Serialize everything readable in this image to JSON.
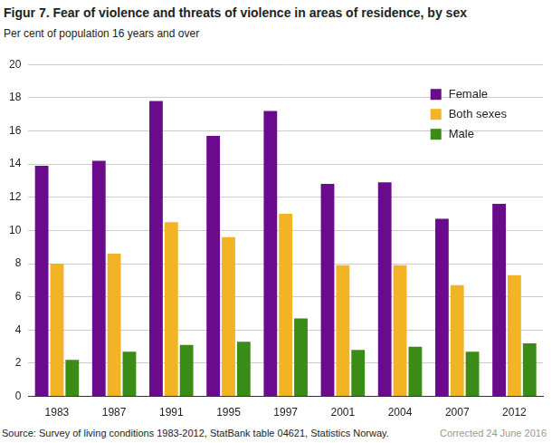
{
  "chart_data": {
    "type": "bar",
    "title": "Figur 7. Fear of violence and threats of violence in areas of residence, by sex",
    "subtitle": "Per cent of population 16 years and over",
    "source": "Source: Survey of living conditions 1983-2012, StatBank table 04621, Statistics Norway.",
    "note": "Corrected 24 June 2016",
    "categories": [
      "1983",
      "1987",
      "1991",
      "1995",
      "1997",
      "2001",
      "2004",
      "2007",
      "2012"
    ],
    "series": [
      {
        "name": "Female",
        "color": "#6a0a8c",
        "values": [
          13.9,
          14.2,
          17.8,
          15.7,
          17.2,
          12.8,
          12.9,
          10.7,
          11.6
        ]
      },
      {
        "name": "Both sexes",
        "color": "#f2b324",
        "values": [
          8.0,
          8.6,
          10.5,
          9.6,
          11.0,
          7.9,
          7.9,
          6.7,
          7.3
        ]
      },
      {
        "name": "Male",
        "color": "#3b8c17",
        "values": [
          2.2,
          2.7,
          3.1,
          3.3,
          4.7,
          2.8,
          3.0,
          2.7,
          3.2
        ]
      }
    ],
    "ylim": [
      0,
      20
    ],
    "yticks": [
      0,
      2,
      4,
      6,
      8,
      10,
      12,
      14,
      16,
      18,
      20
    ],
    "grid": true,
    "legend": "top-right"
  }
}
